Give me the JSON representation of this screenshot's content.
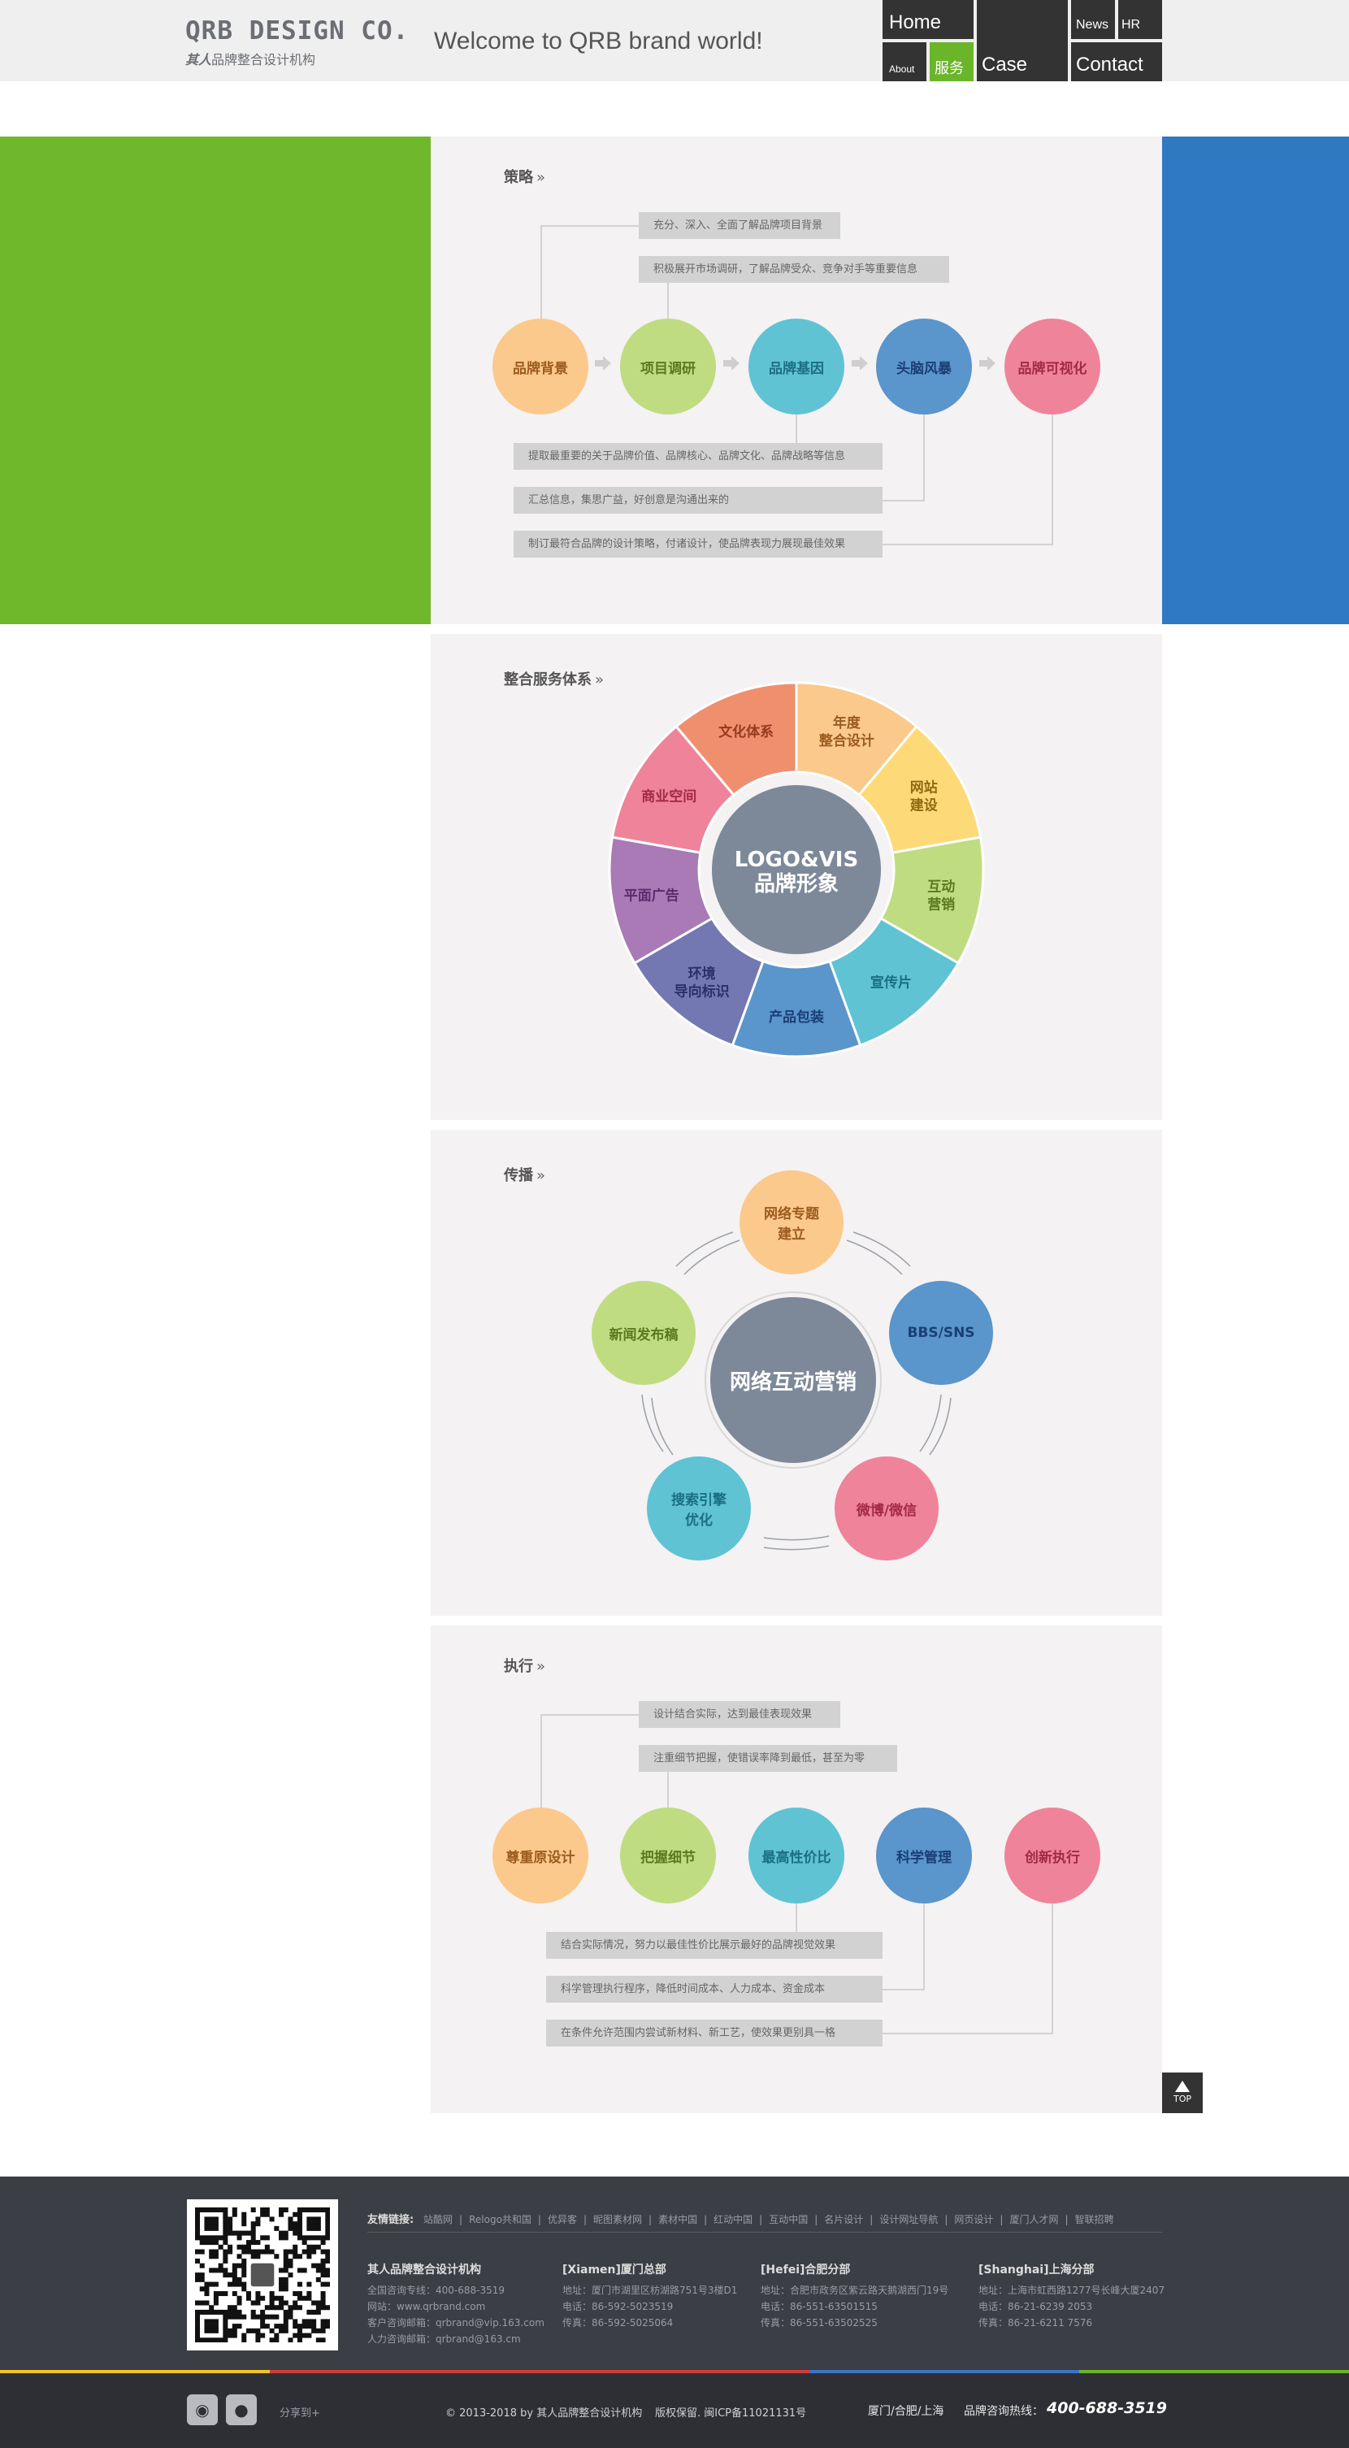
{
  "header": {
    "logo_main": "QRB DESIGN CO.",
    "logo_sub_cn": "其人",
    "logo_sub": "品牌整合设计机构",
    "welcome": "Welcome to QRB brand world!",
    "nav": {
      "home": "Home",
      "about": "About",
      "service": "服务",
      "case": "Case",
      "news": "News",
      "hr": "HR",
      "contact": "Contact"
    }
  },
  "strategy": {
    "title": "策略",
    "top_notes": [
      "充分、深入、全面了解品牌项目背景",
      "积极展开市场调研，了解品牌受众、竞争对手等重要信息"
    ],
    "steps": [
      "品牌背景",
      "项目调研",
      "品牌基因",
      "头脑风暴",
      "品牌可视化"
    ],
    "bottom_notes": [
      "提取最重要的关于品牌价值、品牌核心、品牌文化、品牌战略等信息",
      "汇总信息，集思广益，好创意是沟通出来的",
      "制订最符合品牌的设计策略，付诸设计，使品牌表现力展现最佳效果"
    ]
  },
  "services": {
    "title": "整合服务体系",
    "center_line1": "LOGO&VIS",
    "center_line2": "品牌形象",
    "segments": [
      {
        "l1": "年度",
        "l2": "整合设计",
        "color": "#fbc98b",
        "text": "#9b5b1f"
      },
      {
        "l1": "网站",
        "l2": "建设",
        "color": "#fed977",
        "text": "#8f6a12"
      },
      {
        "l1": "互动",
        "l2": "营销",
        "color": "#c0dc81",
        "text": "#5a7a1c"
      },
      {
        "l1": "宣传片",
        "l2": "",
        "color": "#5fc3d4",
        "text": "#1b6f82"
      },
      {
        "l1": "产品包装",
        "l2": "",
        "color": "#5a95cc",
        "text": "#1a3f75"
      },
      {
        "l1": "环境",
        "l2": "导向标识",
        "color": "#7378b3",
        "text": "#2b2f6a"
      },
      {
        "l1": "平面广告",
        "l2": "",
        "color": "#a97ab6",
        "text": "#5a2a6a"
      },
      {
        "l1": "商业空间",
        "l2": "",
        "color": "#ef8399",
        "text": "#a22a48"
      },
      {
        "l1": "文化体系",
        "l2": "",
        "color": "#f08f6e",
        "text": "#963a1f"
      }
    ]
  },
  "spread": {
    "title": "传播",
    "center": "网络互动营销",
    "nodes": [
      {
        "l1": "网络专题",
        "l2": "建立"
      },
      {
        "l1": "BBS/SNS",
        "l2": ""
      },
      {
        "l1": "微博/微信",
        "l2": ""
      },
      {
        "l1": "搜索引擎",
        "l2": "优化"
      },
      {
        "l1": "新闻发布稿",
        "l2": ""
      }
    ]
  },
  "execute": {
    "title": "执行",
    "top_notes": [
      "设计结合实际，达到最佳表现效果",
      "注重细节把握，使错误率降到最低，甚至为零"
    ],
    "steps": [
      "尊重原设计",
      "把握细节",
      "最高性价比",
      "科学管理",
      "创新执行"
    ],
    "bottom_notes": [
      "结合实际情况，努力以最佳性价比展示最好的品牌视觉效果",
      "科学管理执行程序，降低时间成本、人力成本、资金成本",
      "在条件允许范围内尝试新材料、新工艺，使效果更别具一格"
    ]
  },
  "top_button": "TOP",
  "footer": {
    "links_label": "友情链接:",
    "links": [
      "站酷网",
      "Relogo共和国",
      "优异客",
      "昵图素材网",
      "素材中国",
      "红动中国",
      "互动中国",
      "名片设计",
      "设计网址导航",
      "网页设计",
      "厦门人才网",
      "智联招聘"
    ],
    "offices": [
      {
        "name": "其人品牌整合设计机构",
        "lines": [
          "全国咨询专线：400-688-3519",
          "网站：www.qrbrand.com",
          "客户咨询邮箱：qrbrand@vip.163.com",
          "人力咨询邮箱：qrbrand@163.cm"
        ]
      },
      {
        "name": "[Xiamen]厦门总部",
        "lines": [
          "地址：厦门市湖里区枋湖路751号3楼D1",
          "电话：86-592-5023519",
          "传真：86-592-5025064"
        ]
      },
      {
        "name": "[Hefei]合肥分部",
        "lines": [
          "地址：合肥市政务区紫云路天鹅湖西门19号",
          "电话：86-551-63501515",
          "传真：86-551-63502525"
        ]
      },
      {
        "name": "[Shanghai]上海分部",
        "lines": [
          "地址：上海市虹西路1277号长峰大厦2407",
          "电话：86-21-6239 2053",
          "传真：86-21-6211 7576"
        ]
      }
    ],
    "share": "分享到+",
    "copyright": "© 2013-2018 by 其人品牌整合设计机构",
    "rights": "版权保留. 闽ICP备11021131号",
    "cities": "厦门/合肥/上海",
    "hotline_label": "品牌咨询热线：",
    "hotline": "400-688-3519",
    "stripe_colors": [
      "#f3c323",
      "#d23b3b",
      "#3a74c6",
      "#6bb52a"
    ]
  }
}
